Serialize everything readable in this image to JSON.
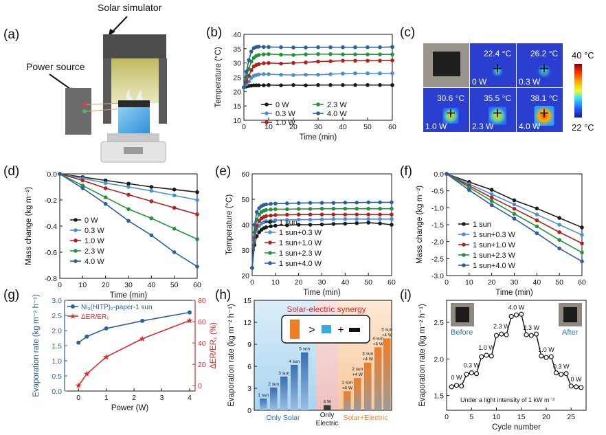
{
  "panel_labels": [
    "(a)",
    "(b)",
    "(c)",
    "(d)",
    "(e)",
    "(f)",
    "(g)",
    "(h)",
    "(i)"
  ],
  "colors": {
    "black": "#1a1a1a",
    "lightblue": "#4a90d0",
    "red": "#b41f1f",
    "green": "#23913f",
    "darkblue": "#2b5f9e",
    "brightred": "#e5262b",
    "orange": "#f07e26",
    "cyan": "#3aa9e0"
  },
  "illustration": {
    "solar_label": "Solar simulator",
    "power_label": "Power source"
  },
  "thermal": {
    "max_label": "40 °C",
    "min_label": "22 °C",
    "tiles": [
      {
        "temp": "",
        "power": ""
      },
      {
        "temp": "22.4 °C",
        "power": "0 W"
      },
      {
        "temp": "26.2 °C",
        "power": "0.3 W"
      },
      {
        "temp": "30.6 °C",
        "power": "1.0 W"
      },
      {
        "temp": "35.5 °C",
        "power": "2.3 W"
      },
      {
        "temp": "38.1 °C",
        "power": "4.0 W"
      }
    ]
  },
  "chart_data": [
    {
      "id": "b",
      "type": "line",
      "xlabel": "Time (min)",
      "ylabel": "Temperature (°C)",
      "xlim": [
        0,
        60
      ],
      "ylim": [
        10,
        40
      ],
      "xticks": [
        0,
        10,
        20,
        30,
        40,
        50,
        60
      ],
      "yticks": [
        10,
        15,
        20,
        25,
        30,
        35,
        40
      ],
      "x": [
        0,
        1,
        2,
        3,
        4,
        5,
        6,
        8,
        10,
        15,
        20,
        25,
        30,
        35,
        40,
        45,
        50,
        55,
        60
      ],
      "legend_cols": 2,
      "series": [
        {
          "name": "0 W",
          "color": "#1a1a1a",
          "values": [
            21.5,
            21.8,
            22.0,
            22.1,
            22.2,
            22.2,
            22.2,
            22.2,
            22.3,
            22.2,
            22.3,
            22.2,
            22.3,
            22.3,
            22.3,
            22.3,
            22.3,
            22.3,
            22.3
          ]
        },
        {
          "name": "0.3 W",
          "color": "#4a90d0",
          "values": [
            21.5,
            22.5,
            23.5,
            24.8,
            25.5,
            25.8,
            26.0,
            26.1,
            26.1,
            25.9,
            25.8,
            25.9,
            25.9,
            26.1,
            26.3,
            26.4,
            26.4,
            26.4,
            26.4
          ]
        },
        {
          "name": "1.0 W",
          "color": "#b41f1f",
          "values": [
            21.5,
            23.5,
            25.5,
            27.5,
            28.8,
            29.3,
            29.6,
            29.9,
            30.0,
            29.8,
            30.0,
            30.2,
            30.5,
            30.6,
            30.8,
            30.8,
            30.8,
            30.8,
            30.9
          ]
        },
        {
          "name": "2.3 W",
          "color": "#23913f",
          "values": [
            21.5,
            25,
            28,
            30.5,
            31.8,
            32.5,
            32.8,
            33.0,
            33.1,
            32.9,
            32.8,
            33.0,
            33.1,
            33.1,
            33.0,
            33.0,
            33.0,
            33.0,
            33.0
          ]
        },
        {
          "name": "4.0 W",
          "color": "#2b5f9e",
          "values": [
            21.5,
            27,
            31,
            34,
            35.2,
            35.6,
            35.7,
            35.6,
            35.6,
            35.5,
            35.4,
            35.4,
            35.5,
            35.5,
            35.5,
            35.5,
            35.5,
            35.5,
            35.6
          ]
        }
      ]
    },
    {
      "id": "d",
      "type": "line",
      "xlabel": "Time (min)",
      "ylabel": "Mass change (kg m⁻²)",
      "xlim": [
        0,
        60
      ],
      "ylim": [
        -0.8,
        0.0
      ],
      "xticks": [
        0,
        10,
        20,
        30,
        40,
        50,
        60
      ],
      "yticks": [
        0.0,
        -0.2,
        -0.4,
        -0.6,
        -0.8
      ],
      "x": [
        0,
        10,
        20,
        30,
        40,
        50,
        60
      ],
      "legend_cols": 1,
      "series": [
        {
          "name": "0 W",
          "color": "#1a1a1a",
          "values": [
            0,
            -0.025,
            -0.05,
            -0.075,
            -0.1,
            -0.12,
            -0.14
          ]
        },
        {
          "name": "0.3 W",
          "color": "#4a90d0",
          "values": [
            0,
            -0.035,
            -0.07,
            -0.1,
            -0.13,
            -0.165,
            -0.2
          ]
        },
        {
          "name": "1.0 W",
          "color": "#b41f1f",
          "values": [
            0,
            -0.05,
            -0.11,
            -0.16,
            -0.21,
            -0.26,
            -0.31
          ]
        },
        {
          "name": "2.3 W",
          "color": "#23913f",
          "values": [
            0,
            -0.09,
            -0.18,
            -0.27,
            -0.34,
            -0.42,
            -0.5
          ]
        },
        {
          "name": "4.0 W",
          "color": "#2b5f9e",
          "values": [
            0,
            -0.11,
            -0.23,
            -0.36,
            -0.47,
            -0.6,
            -0.71
          ]
        }
      ]
    },
    {
      "id": "e",
      "type": "line",
      "xlabel": "Time (min)",
      "ylabel": "Temperature (°C)",
      "xlim": [
        0,
        60
      ],
      "ylim": [
        20,
        60
      ],
      "xticks": [
        0,
        10,
        20,
        30,
        40,
        50,
        60
      ],
      "yticks": [
        20,
        30,
        40,
        50,
        60
      ],
      "x": [
        0,
        1,
        2,
        3,
        4,
        5,
        6,
        8,
        10,
        15,
        20,
        25,
        30,
        35,
        40,
        45,
        50,
        55,
        60
      ],
      "legend_cols": 1,
      "series": [
        {
          "name": "1 sun",
          "color": "#1a1a1a",
          "values": [
            23,
            32,
            35.5,
            37,
            38,
            38.6,
            39,
            39.4,
            39.6,
            39.8,
            40,
            40,
            40.1,
            40.3,
            40.4,
            40.6,
            40.8,
            40.5,
            40
          ]
        },
        {
          "name": "1 sun+0.3 W",
          "color": "#4a90d0",
          "values": [
            23,
            34,
            38,
            39.5,
            40.5,
            41,
            41.4,
            41.6,
            41.8,
            41.9,
            42,
            42,
            42.1,
            42.2,
            42.2,
            42.2,
            42.2,
            42.2,
            42.2
          ]
        },
        {
          "name": "1 sun+1.0 W",
          "color": "#b41f1f",
          "values": [
            23,
            35,
            39.5,
            41.5,
            42.5,
            43,
            43.4,
            43.6,
            43.8,
            43.9,
            44,
            44,
            44,
            44,
            44,
            44,
            44,
            44,
            44
          ]
        },
        {
          "name": "1 sun+2.3 W",
          "color": "#23913f",
          "values": [
            23,
            37,
            42,
            44,
            45,
            45.5,
            45.8,
            46,
            46.1,
            46.1,
            46.2,
            46.2,
            46.3,
            46.3,
            46.3,
            46.3,
            46.3,
            46.3,
            46.3
          ]
        },
        {
          "name": "1 sun+4.0 W",
          "color": "#2b5f9e",
          "values": [
            23,
            40,
            45,
            46.5,
            47.3,
            47.8,
            48,
            48.2,
            48.3,
            48.4,
            48.5,
            48.6,
            48.6,
            48.6,
            48.7,
            48.7,
            48.8,
            48.8,
            48.8
          ]
        }
      ]
    },
    {
      "id": "f",
      "type": "line",
      "xlabel": "Time (min)",
      "ylabel": "Mass change (kg m⁻²)",
      "xlim": [
        0,
        60
      ],
      "ylim": [
        -3.0,
        0.0
      ],
      "xticks": [
        0,
        10,
        20,
        30,
        40,
        50,
        60
      ],
      "yticks": [
        0.0,
        -0.5,
        -1.0,
        -1.5,
        -2.0,
        -2.5,
        -3.0
      ],
      "x": [
        0,
        10,
        20,
        30,
        40,
        50,
        60
      ],
      "legend_cols": 1,
      "series": [
        {
          "name": "1 sun",
          "color": "#1a1a1a",
          "values": [
            0,
            -0.24,
            -0.47,
            -0.78,
            -1.02,
            -1.3,
            -1.58
          ]
        },
        {
          "name": "1 sun+0.3 W",
          "color": "#4a90d0",
          "values": [
            0,
            -0.3,
            -0.6,
            -0.9,
            -1.2,
            -1.5,
            -1.8
          ]
        },
        {
          "name": "1 sun+1.0 W",
          "color": "#b41f1f",
          "values": [
            0,
            -0.35,
            -0.7,
            -1.03,
            -1.37,
            -1.72,
            -2.05
          ]
        },
        {
          "name": "1 sun+2.3 W",
          "color": "#23913f",
          "values": [
            0,
            -0.4,
            -0.8,
            -1.18,
            -1.55,
            -1.95,
            -2.32
          ]
        },
        {
          "name": "1 sun+4.0 W",
          "color": "#2b5f9e",
          "values": [
            0,
            -0.48,
            -0.92,
            -1.32,
            -1.75,
            -2.2,
            -2.58
          ]
        }
      ]
    },
    {
      "id": "g",
      "type": "line",
      "xlabel": "Power (W)",
      "ylabel": "Evaporation rate (kg m⁻² h⁻¹)",
      "y2label": "ΔER/ER₁ (%)",
      "xlim": [
        -0.5,
        4.2
      ],
      "ylim": [
        0.0,
        3.0
      ],
      "y2lim": [
        -5,
        80
      ],
      "xticks": [
        0,
        1,
        2,
        3,
        4
      ],
      "yticks": [
        0.0,
        0.5,
        1.0,
        1.5,
        2.0,
        2.5,
        3.0
      ],
      "y2ticks": [
        0,
        20,
        40,
        60,
        80
      ],
      "x": [
        0,
        0.3,
        1.0,
        2.3,
        4.0
      ],
      "series": [
        {
          "name": "Ni₃(HITP)₂-paper-1 sun",
          "color": "#2b5f9e",
          "axis": "left",
          "values": [
            1.6,
            1.8,
            2.07,
            2.32,
            2.6
          ]
        },
        {
          "name": "ΔER/ER₁",
          "color": "#e5262b",
          "axis": "right",
          "values": [
            0,
            11,
            27,
            44,
            61
          ]
        }
      ]
    },
    {
      "id": "h",
      "type": "bar",
      "title": "Solar-electric synergy",
      "ylabel": "Evaporation rate (kg m⁻² h⁻¹)",
      "ylim": [
        0,
        15
      ],
      "yticks": [
        0,
        3,
        6,
        9,
        12,
        15
      ],
      "group_labels": [
        "Only Solar",
        "Only Electric",
        "Solar+Electric"
      ],
      "groups": [
        {
          "name": "Only Solar",
          "labels": [
            "1 sun",
            "2 sun",
            "3 sun",
            "4 sun",
            "5 sun"
          ],
          "values": [
            1.6,
            3.1,
            4.6,
            6.2,
            7.9
          ]
        },
        {
          "name": "Only Electric",
          "labels": [
            "4 W"
          ],
          "values": [
            0.7
          ]
        },
        {
          "name": "Solar+Electric",
          "labels": [
            "1 sun +4 W",
            "2 sun +4 W",
            "3 sun +4 W",
            "4 sun +4 W",
            "5 sun +4 W"
          ],
          "values": [
            2.6,
            4.4,
            6.5,
            8.6,
            9.8
          ]
        }
      ],
      "synergy_symbols": [
        ">",
        "+"
      ]
    },
    {
      "id": "i",
      "type": "line",
      "xlabel": "Cycle number",
      "ylabel": "Evaporation rate (kg m⁻² h⁻¹)",
      "xlim": [
        0,
        28
      ],
      "ylim": [
        1.3,
        2.8
      ],
      "xticks": [
        0,
        5,
        10,
        15,
        20,
        25
      ],
      "yticks": [
        1.5,
        2.0,
        2.5
      ],
      "x": [
        1,
        2,
        3,
        4,
        5,
        6,
        7,
        8,
        9,
        10,
        11,
        12,
        13,
        14,
        15,
        16,
        17,
        18,
        19,
        20,
        21,
        22,
        23,
        24,
        25,
        26,
        27
      ],
      "values": [
        1.62,
        1.64,
        1.63,
        1.79,
        1.81,
        1.8,
        2.03,
        2.05,
        2.04,
        2.32,
        2.34,
        2.33,
        2.58,
        2.6,
        2.61,
        2.33,
        2.32,
        2.34,
        2.04,
        2.02,
        2.03,
        1.81,
        1.79,
        1.8,
        1.63,
        1.62,
        1.61
      ],
      "annotations": [
        "0 W",
        "0.3 W",
        "1.0 W",
        "2.3 W",
        "4.0 W",
        "2.3 W",
        "1.0 W",
        "0.3 W",
        "0 W"
      ],
      "note": "Under a light intensity of 1 kW m⁻²",
      "before_label": "Before",
      "after_label": "After"
    }
  ]
}
